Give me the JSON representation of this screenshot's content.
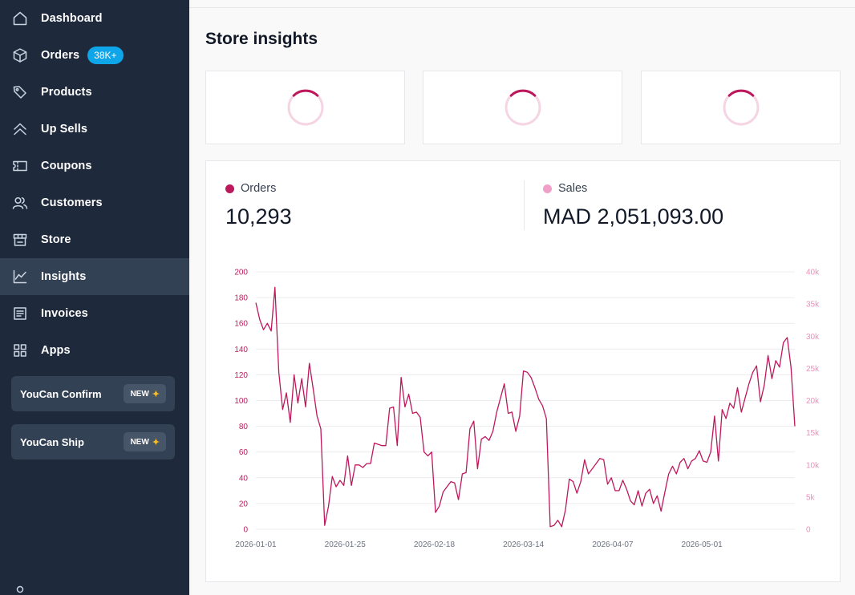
{
  "sidebar": {
    "items": [
      {
        "label": "Dashboard",
        "icon": "home-icon"
      },
      {
        "label": "Orders",
        "icon": "box-icon",
        "badge": "38K+"
      },
      {
        "label": "Products",
        "icon": "tag-icon"
      },
      {
        "label": "Up Sells",
        "icon": "chevrons-up-icon"
      },
      {
        "label": "Coupons",
        "icon": "ticket-icon"
      },
      {
        "label": "Customers",
        "icon": "users-icon"
      },
      {
        "label": "Store",
        "icon": "storefront-icon"
      },
      {
        "label": "Insights",
        "icon": "line-chart-icon",
        "active": true
      },
      {
        "label": "Invoices",
        "icon": "invoice-icon"
      },
      {
        "label": "Apps",
        "icon": "grid-icon"
      }
    ],
    "promos": [
      {
        "label": "YouCan Confirm",
        "tag": "NEW"
      },
      {
        "label": "YouCan Ship",
        "tag": "NEW"
      }
    ]
  },
  "page": {
    "title": "Store insights"
  },
  "metrics": {
    "orders": {
      "label": "Orders",
      "value": "10,293",
      "color": "#be185d"
    },
    "sales": {
      "label": "Sales",
      "value": "MAD 2,051,093.00",
      "color": "#f0a0c8"
    }
  },
  "colors": {
    "accent": "#be185d",
    "sidebar": "#1e293b",
    "active": "#334155",
    "badge": "#0ea5e9"
  },
  "chart_data": {
    "type": "line",
    "title": "",
    "grid": true,
    "y_left": {
      "ticks": [
        "0",
        "20",
        "40",
        "60",
        "80",
        "100",
        "120",
        "140",
        "160",
        "180",
        "200"
      ],
      "ylim": [
        0,
        200
      ]
    },
    "y_right": {
      "ticks": [
        "0",
        "5k",
        "10k",
        "15k",
        "20k",
        "25k",
        "30k",
        "35k",
        "40k"
      ],
      "ylim": [
        0,
        40000
      ]
    },
    "x_ticks": [
      "2026-01-01",
      "2026-01-25",
      "2026-02-18",
      "2026-03-14",
      "2026-04-07",
      "2026-05-01"
    ],
    "x_start": "2026-01-01",
    "x_end": "2026-05-26",
    "series": [
      {
        "name": "Orders",
        "axis": "left",
        "color": "#be185d",
        "values": [
          176,
          163,
          155,
          160,
          154,
          188,
          122,
          93,
          106,
          83,
          120,
          98,
          117,
          95,
          129,
          109,
          88,
          78,
          3,
          18,
          41,
          33,
          38,
          34,
          57,
          34,
          50,
          50,
          48,
          51,
          51,
          67,
          66,
          65,
          65,
          94,
          95,
          65,
          118,
          95,
          105,
          90,
          91,
          87,
          60,
          57,
          60,
          13,
          18,
          29,
          33,
          37,
          36,
          23,
          43,
          44,
          78,
          84,
          47,
          70,
          72,
          69,
          76,
          91,
          102,
          113,
          90,
          91,
          76,
          88,
          123,
          122,
          118,
          110,
          101,
          96,
          86,
          2,
          3,
          7,
          2,
          15,
          39,
          37,
          28,
          37,
          54,
          43,
          47,
          51,
          55,
          54,
          35,
          40,
          30,
          30,
          38,
          31,
          22,
          19,
          30,
          18,
          28,
          31,
          20,
          26,
          14,
          29,
          43,
          49,
          43,
          52,
          55,
          47,
          53,
          55,
          61,
          53,
          52,
          60,
          88,
          53,
          93,
          86,
          98,
          94,
          110,
          91,
          102,
          113,
          122,
          127,
          99,
          112,
          135,
          117,
          131,
          126,
          145,
          149,
          126,
          80
        ]
      }
    ]
  }
}
